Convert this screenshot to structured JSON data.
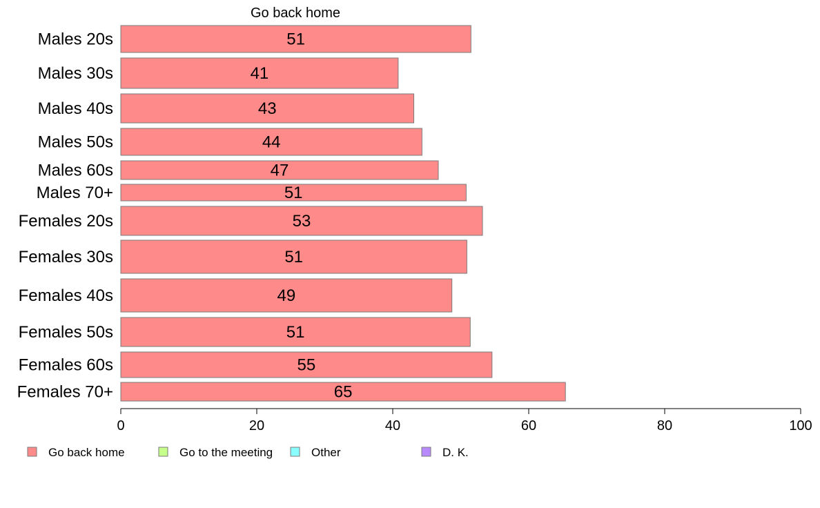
{
  "chart_data": {
    "type": "bar",
    "orientation": "horizontal",
    "title": "Go back home",
    "categories": [
      "Males 20s",
      "Males 30s",
      "Males 40s",
      "Males 50s",
      "Males 60s",
      "Males 70+",
      "Females 20s",
      "Females 30s",
      "Females 40s",
      "Females 50s",
      "Females 60s",
      "Females 70+"
    ],
    "series": [
      {
        "name": "Go back home",
        "color": "#ff8a8a",
        "values": [
          51.5,
          40.8,
          43.1,
          44.3,
          46.7,
          50.8,
          53.2,
          50.9,
          48.7,
          51.4,
          54.6,
          65.4
        ],
        "labels": [
          "51",
          "41",
          "43",
          "44",
          "47",
          "51",
          "53",
          "51",
          "49",
          "51",
          "55",
          "65"
        ]
      }
    ],
    "xlim": [
      0,
      100
    ],
    "xticks": [
      0,
      20,
      40,
      60,
      80,
      100
    ],
    "grid": false,
    "legend": {
      "placement": "bottom",
      "entries": [
        {
          "name": "Go back home",
          "color": "#ff8a8a"
        },
        {
          "name": "Go to the meeting",
          "color": "#c6ff8a"
        },
        {
          "name": "Other",
          "color": "#8affff"
        },
        {
          "name": "D. K.",
          "color": "#b98aff"
        }
      ]
    }
  }
}
